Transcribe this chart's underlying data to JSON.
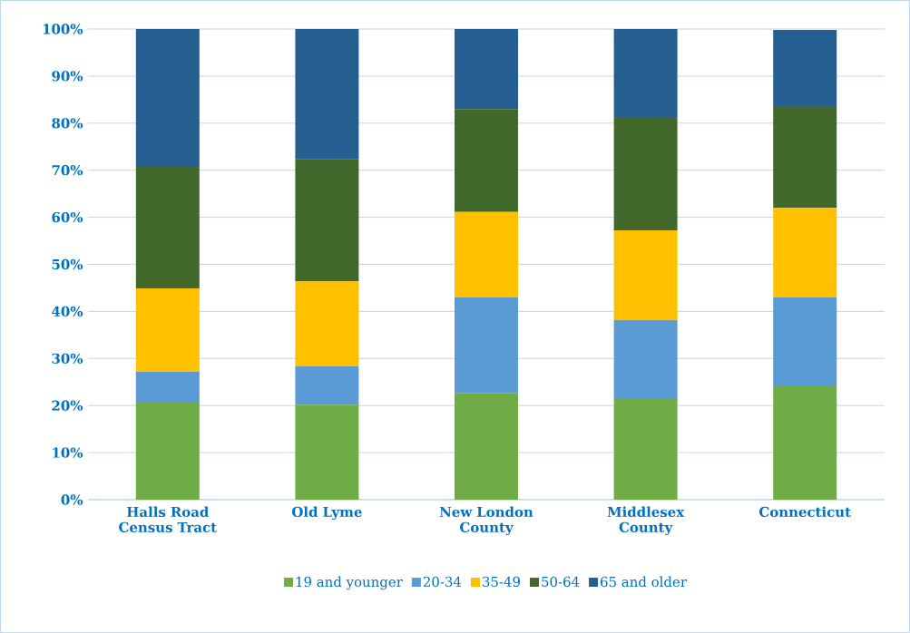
{
  "chart_data": {
    "type": "bar",
    "stacked": true,
    "categories": [
      "Halls Road Census Tract",
      "Old Lyme",
      "New London County",
      "Middlesex County",
      "Connecticut"
    ],
    "series": [
      {
        "name": "19 and younger",
        "color": "#70ad47",
        "values": [
          20.8,
          20.2,
          22.7,
          21.4,
          24.1
        ]
      },
      {
        "name": "20-34",
        "color": "#5b9bd5",
        "values": [
          6.4,
          8.1,
          20.3,
          16.8,
          18.9
        ]
      },
      {
        "name": "35-49",
        "color": "#ffc000",
        "values": [
          17.7,
          18.1,
          18.1,
          19.0,
          19.0
        ]
      },
      {
        "name": "50-64",
        "color": "#43682b",
        "values": [
          25.8,
          25.9,
          21.9,
          24.1,
          21.6
        ]
      },
      {
        "name": "65 and older",
        "color": "#255e91",
        "values": [
          29.3,
          27.7,
          17.0,
          18.7,
          16.2
        ]
      }
    ],
    "ylim": [
      0,
      100
    ],
    "yticks": [
      {
        "value": 0,
        "label": "0%"
      },
      {
        "value": 10,
        "label": "10%"
      },
      {
        "value": 20,
        "label": "20%"
      },
      {
        "value": 30,
        "label": "30%"
      },
      {
        "value": 40,
        "label": "40%"
      },
      {
        "value": 50,
        "label": "50%"
      },
      {
        "value": 60,
        "label": "60%"
      },
      {
        "value": 70,
        "label": "70%"
      },
      {
        "value": 80,
        "label": "80%"
      },
      {
        "value": 90,
        "label": "90%"
      },
      {
        "value": 100,
        "label": "100%"
      }
    ],
    "grid": "y",
    "legend": "bottom"
  }
}
